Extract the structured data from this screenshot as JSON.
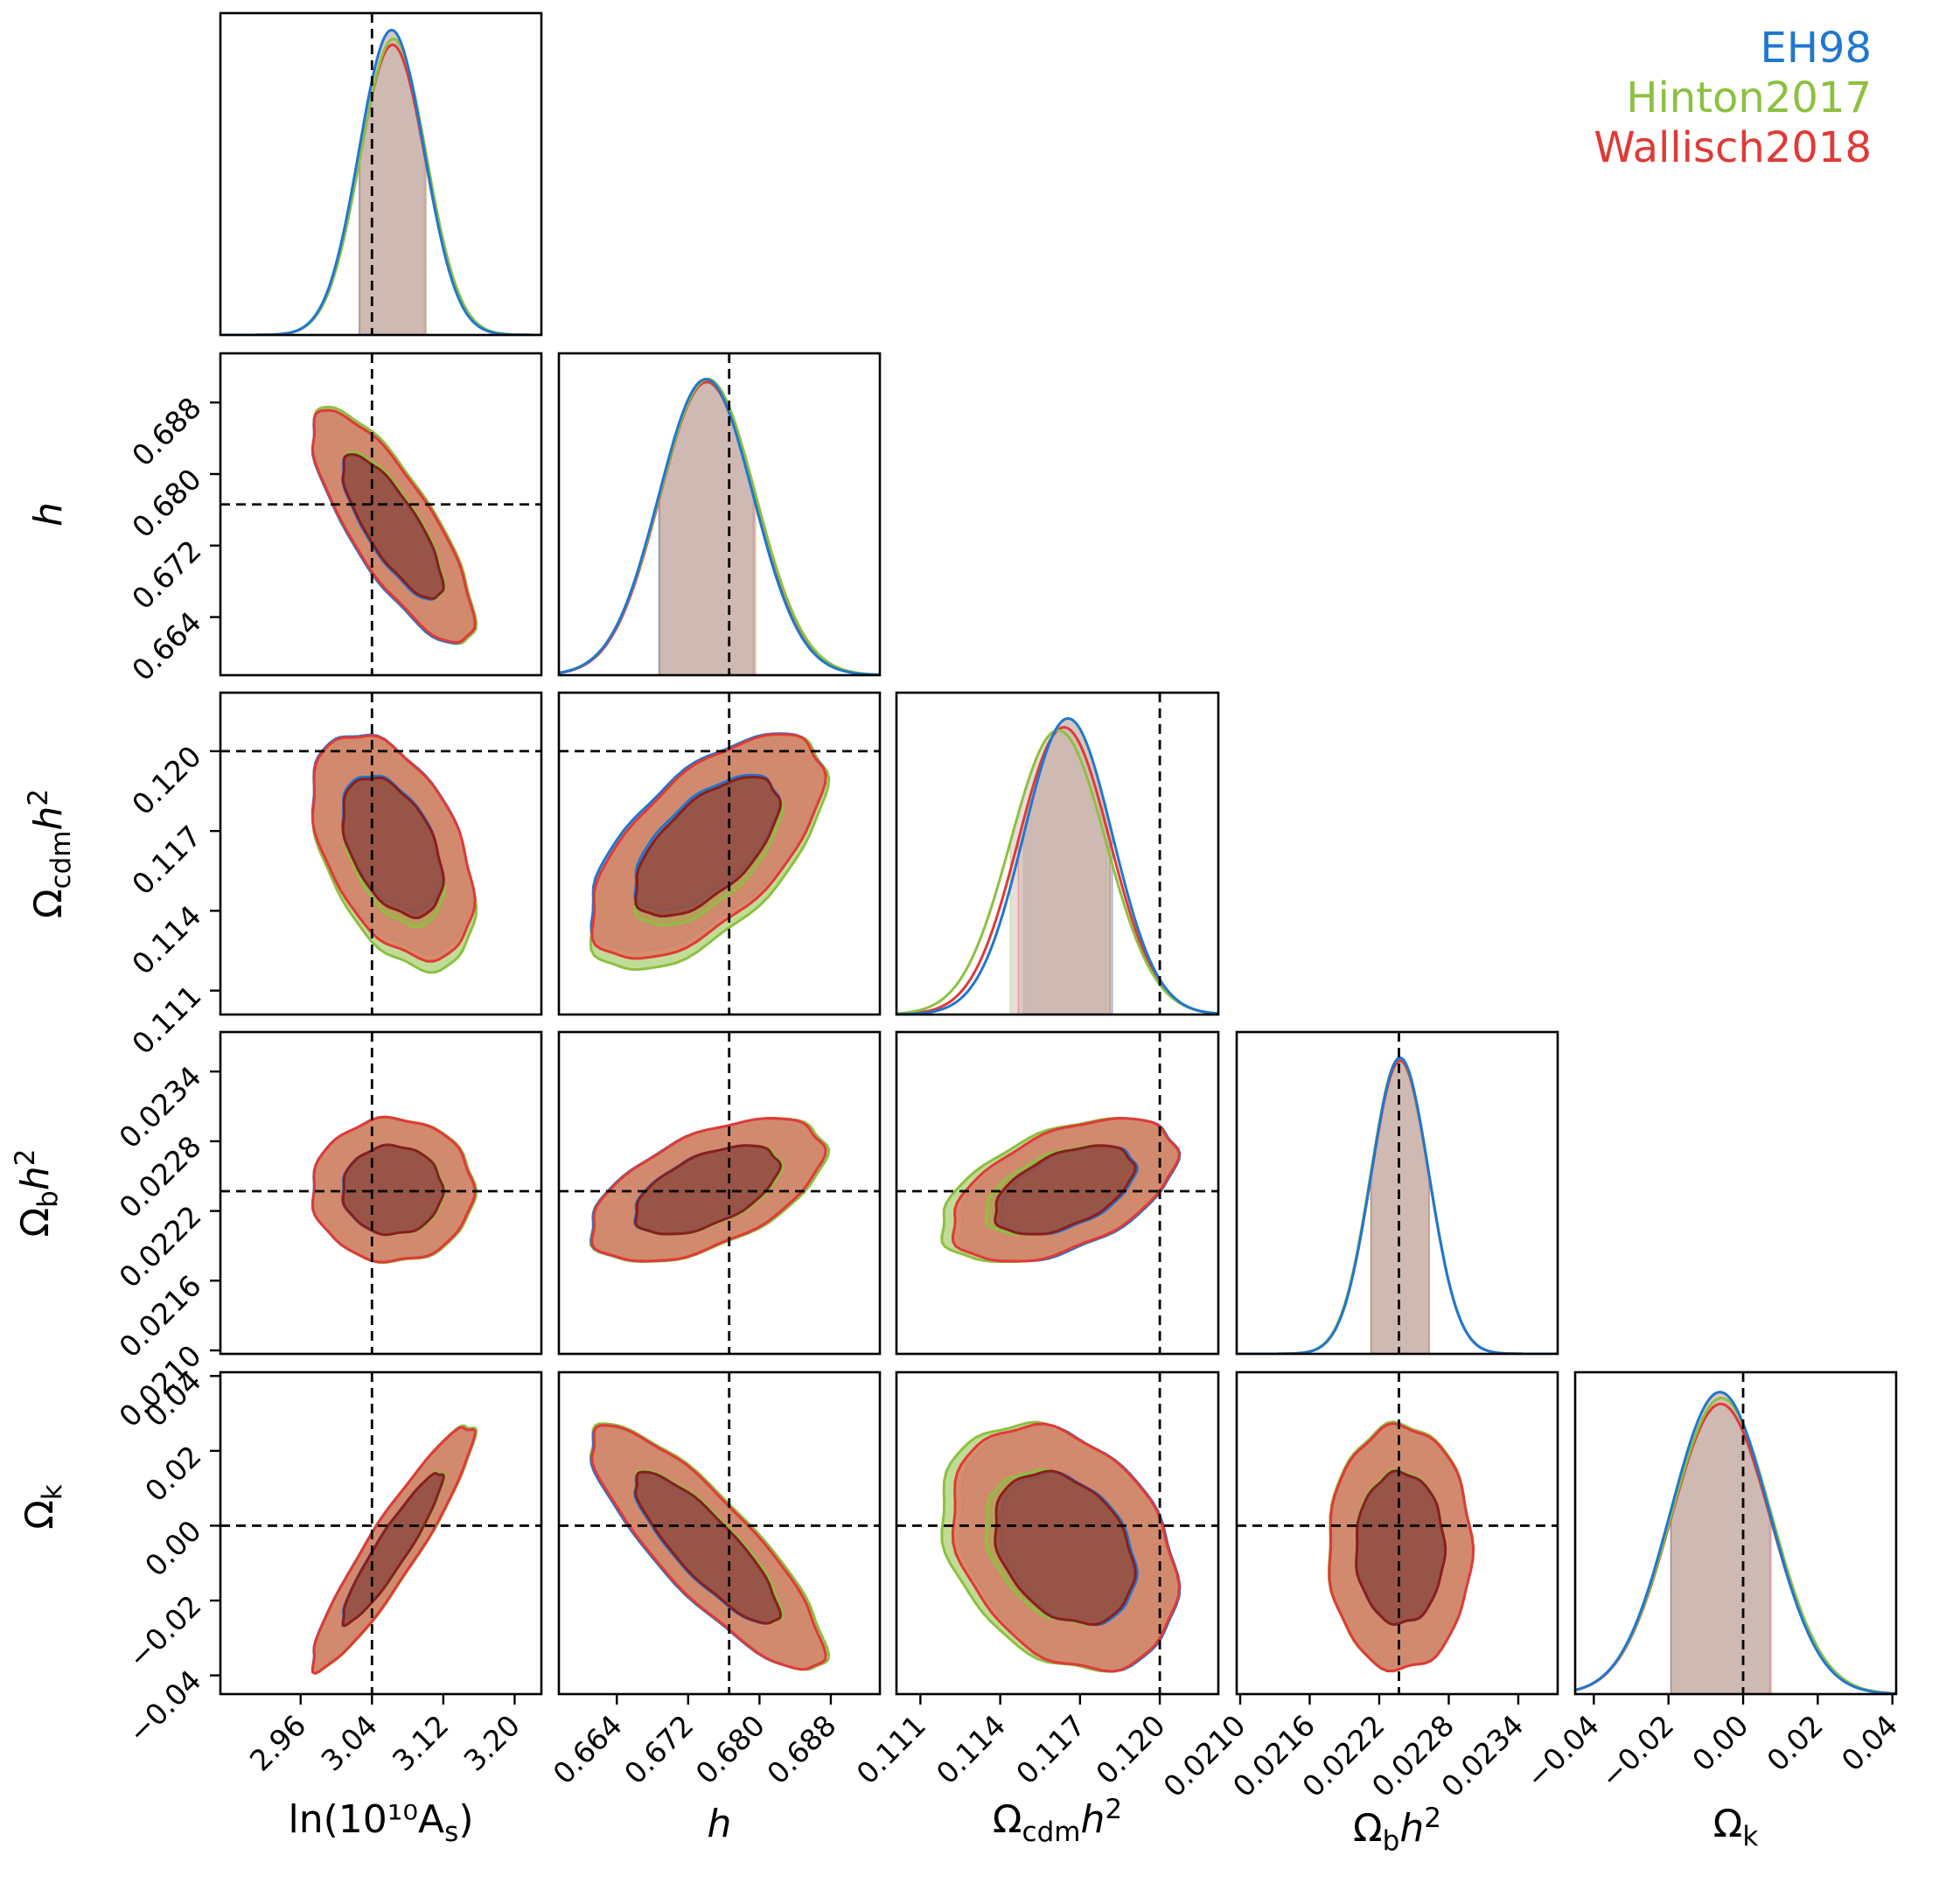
{
  "chart_data": {
    "type": "corner",
    "legend_position": "top-right",
    "grid": false,
    "parameters": [
      {
        "key": "lnAs",
        "label": "ln(10¹⁰A_s)",
        "range": [
          2.87,
          3.23
        ],
        "ticks": [
          2.96,
          3.04,
          3.12,
          3.2
        ],
        "tick_labels": [
          "2.96",
          "3.04",
          "3.12",
          "3.20"
        ],
        "truth": 3.04
      },
      {
        "key": "h",
        "label": "h",
        "range": [
          0.6575,
          0.6935
        ],
        "ticks": [
          0.664,
          0.672,
          0.68,
          0.688
        ],
        "tick_labels": [
          "0.664",
          "0.672",
          "0.680",
          "0.688"
        ],
        "truth": 0.6766
      },
      {
        "key": "omch2",
        "label": "Ω_cdm h²",
        "range": [
          0.1101,
          0.1222
        ],
        "ticks": [
          0.111,
          0.114,
          0.117,
          0.12
        ],
        "tick_labels": [
          "0.111",
          "0.114",
          "0.117",
          "0.120"
        ],
        "truth": 0.12
      },
      {
        "key": "ombh2",
        "label": "Ω_b h²",
        "range": [
          0.02097,
          0.02374
        ],
        "ticks": [
          0.021,
          0.0216,
          0.0222,
          0.0228,
          0.0234
        ],
        "tick_labels": [
          "0.0210",
          "0.0216",
          "0.0222",
          "0.0228",
          "0.0234"
        ],
        "truth": 0.02237
      },
      {
        "key": "omk",
        "label": "Ω_k",
        "range": [
          -0.045,
          0.041
        ],
        "ticks": [
          -0.04,
          -0.02,
          0.0,
          0.02,
          0.04
        ],
        "tick_labels": [
          "−0.04",
          "−0.02",
          "0.00",
          "0.02",
          "0.04"
        ],
        "truth": 0.0
      }
    ],
    "axis_labels": {
      "lnAs": "ln(10¹⁰A",
      "lnAs_sub": "s",
      "lnAs_close": ")",
      "h": "h",
      "omch2_main": "Ω",
      "omch2_sub": "cdm",
      "omch2_var": "h",
      "omch2_sup": "2",
      "ombh2_main": "Ω",
      "ombh2_sub": "b",
      "ombh2_var": "h",
      "ombh2_sup": "2",
      "omk_main": "Ω",
      "omk_sub": "k"
    },
    "series": [
      {
        "name": "EH98",
        "color": "#1f77d0",
        "mean": [
          3.062,
          0.674,
          0.11655,
          0.02238,
          -0.0062
        ],
        "sigma": [
          0.0365,
          0.0053,
          0.00167,
          0.00025,
          0.0132
        ],
        "peak_scale": [
          1.03,
          1.0,
          1.0,
          1.0,
          1.02
        ]
      },
      {
        "name": "Hinton2017",
        "color": "#8dc040",
        "mean": [
          3.064,
          0.6742,
          0.11618,
          0.022378,
          -0.0058
        ],
        "sigma": [
          0.037,
          0.0054,
          0.0018,
          0.000252,
          0.0134
        ],
        "peak_scale": [
          1.0,
          1.0,
          0.96,
          1.0,
          1.0
        ]
      },
      {
        "name": "Wallisch2018",
        "color": "#e03a36",
        "mean": [
          3.063,
          0.6741,
          0.1164,
          0.02238,
          -0.006
        ],
        "sigma": [
          0.0368,
          0.0053,
          0.00172,
          0.000251,
          0.0133
        ],
        "peak_scale": [
          0.98,
          0.99,
          0.97,
          0.99,
          0.98
        ]
      }
    ],
    "correlations": {
      "h|lnAs": -0.8,
      "omch2|lnAs": -0.45,
      "omch2|h": 0.62,
      "ombh2|lnAs": 0.0,
      "ombh2|h": 0.55,
      "ombh2|omch2": 0.5,
      "omk|lnAs": 0.93,
      "omk|h": -0.85,
      "omk|omch2": -0.3,
      "omk|ombh2": 0.0
    },
    "credible_levels": [
      "68%",
      "95%"
    ],
    "fill_colors": {
      "outer_contour": "#d8896a",
      "inner_contour": "#9a4f40",
      "contour_edge": "#c0392b",
      "inner_edge": "#8b1e1e",
      "marginal_band": "#c9b4ae"
    }
  }
}
